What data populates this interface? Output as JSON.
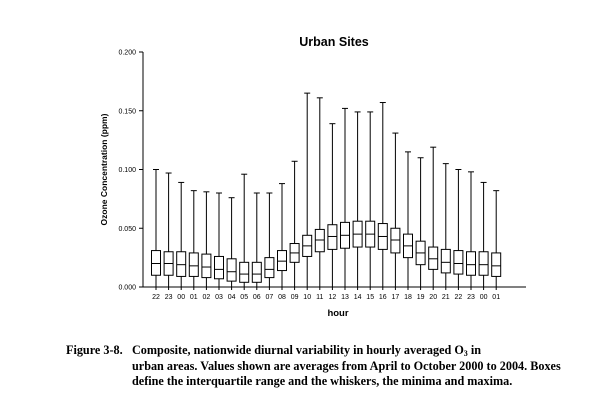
{
  "chart_data": {
    "type": "boxplot",
    "title": "Urban Sites",
    "xlabel": "hour",
    "ylabel": "Ozone Concentration (ppm)",
    "ylim": [
      0,
      0.2
    ],
    "yticks": [
      "0.000",
      "0.050",
      "0.100",
      "0.150",
      "0.200"
    ],
    "ytick_values": [
      0,
      0.05,
      0.1,
      0.15,
      0.2
    ],
    "categories": [
      "22",
      "23",
      "00",
      "01",
      "02",
      "03",
      "04",
      "05",
      "06",
      "07",
      "08",
      "09",
      "10",
      "11",
      "12",
      "13",
      "14",
      "15",
      "16",
      "17",
      "18",
      "19",
      "20",
      "21",
      "22",
      "23",
      "00",
      "01"
    ],
    "series": [
      {
        "min": [
          0.0,
          0.0,
          0.0,
          0.0,
          0.0,
          0.0,
          0.0,
          0.0,
          0.0,
          0.0,
          0.0,
          0.0,
          0.0,
          0.0,
          0.0,
          0.0,
          0.0,
          0.0,
          0.0,
          0.0,
          0.0,
          0.0,
          0.0,
          0.0,
          0.0,
          0.0,
          0.0,
          0.0
        ],
        "q1": [
          0.01,
          0.01,
          0.009,
          0.009,
          0.008,
          0.007,
          0.005,
          0.004,
          0.004,
          0.008,
          0.014,
          0.021,
          0.026,
          0.03,
          0.032,
          0.033,
          0.034,
          0.034,
          0.032,
          0.029,
          0.025,
          0.019,
          0.015,
          0.012,
          0.011,
          0.01,
          0.01,
          0.009
        ],
        "median": [
          0.02,
          0.02,
          0.019,
          0.018,
          0.017,
          0.015,
          0.013,
          0.011,
          0.011,
          0.015,
          0.022,
          0.029,
          0.035,
          0.04,
          0.043,
          0.044,
          0.045,
          0.045,
          0.043,
          0.04,
          0.035,
          0.029,
          0.024,
          0.021,
          0.02,
          0.019,
          0.019,
          0.018
        ],
        "q3": [
          0.031,
          0.03,
          0.03,
          0.029,
          0.028,
          0.026,
          0.024,
          0.021,
          0.021,
          0.025,
          0.031,
          0.037,
          0.044,
          0.049,
          0.053,
          0.055,
          0.056,
          0.056,
          0.054,
          0.05,
          0.045,
          0.039,
          0.034,
          0.032,
          0.031,
          0.03,
          0.03,
          0.029
        ],
        "max": [
          0.1,
          0.097,
          0.089,
          0.082,
          0.081,
          0.08,
          0.076,
          0.096,
          0.08,
          0.08,
          0.088,
          0.107,
          0.165,
          0.161,
          0.139,
          0.152,
          0.149,
          0.149,
          0.157,
          0.131,
          0.115,
          0.11,
          0.119,
          0.105,
          0.1,
          0.098,
          0.089,
          0.082
        ]
      }
    ],
    "grid": false,
    "legend": "none"
  },
  "caption": {
    "label": "Figure 3-8.",
    "text_before_sub": "Composite, nationwide diurnal variability in hourly averaged O",
    "sub": "3",
    "text_after_sub": " in",
    "continuation": "urban areas.  Values shown are averages from April to October 2000 to 2004.  Boxes define the interquartile range and the whiskers, the minima and maxima."
  }
}
